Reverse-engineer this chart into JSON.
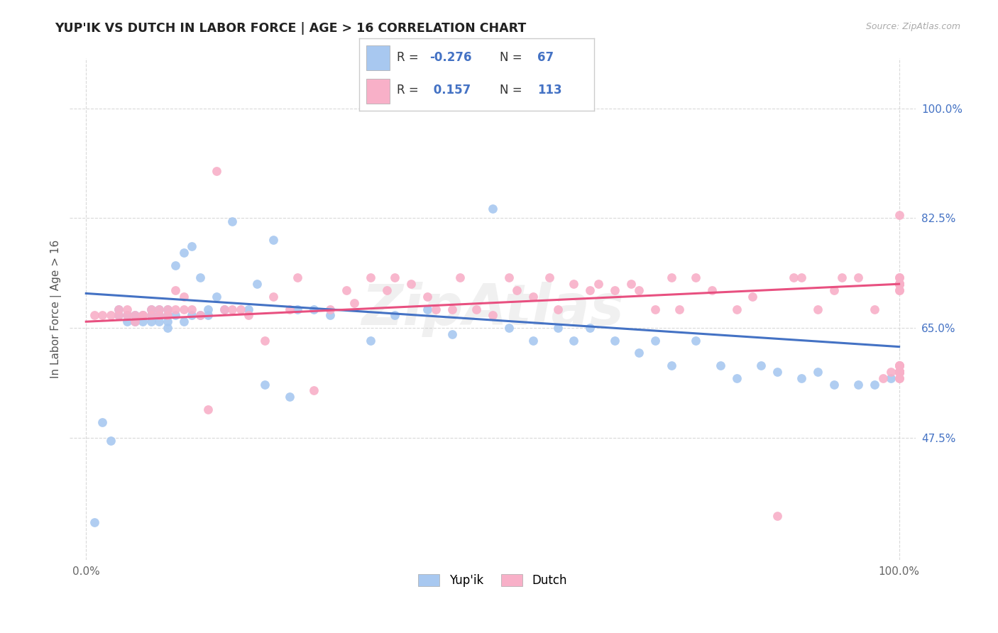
{
  "title": "YUP'IK VS DUTCH IN LABOR FORCE | AGE > 16 CORRELATION CHART",
  "source_text": "Source: ZipAtlas.com",
  "ylabel": "In Labor Force | Age > 16",
  "xlim": [
    -0.02,
    1.02
  ],
  "ylim": [
    0.28,
    1.08
  ],
  "x_tick_labels": [
    "0.0%",
    "100.0%"
  ],
  "x_tick_vals": [
    0.0,
    1.0
  ],
  "y_tick_labels": [
    "47.5%",
    "65.0%",
    "82.5%",
    "100.0%"
  ],
  "y_ticks": [
    0.475,
    0.65,
    0.825,
    1.0
  ],
  "color_yupik": "#a8c8f0",
  "color_dutch": "#f8b0c8",
  "line_color_yupik": "#4472c4",
  "line_color_dutch": "#e85080",
  "watermark": "ZipAtlas",
  "background_color": "#ffffff",
  "grid_color": "#d0d0d0",
  "yupik_x": [
    0.01,
    0.02,
    0.03,
    0.04,
    0.04,
    0.05,
    0.05,
    0.06,
    0.06,
    0.07,
    0.07,
    0.08,
    0.08,
    0.08,
    0.09,
    0.09,
    0.09,
    0.1,
    0.1,
    0.1,
    0.1,
    0.11,
    0.11,
    0.12,
    0.12,
    0.13,
    0.13,
    0.14,
    0.14,
    0.15,
    0.15,
    0.16,
    0.17,
    0.18,
    0.2,
    0.21,
    0.22,
    0.23,
    0.25,
    0.26,
    0.28,
    0.3,
    0.35,
    0.38,
    0.42,
    0.45,
    0.5,
    0.52,
    0.55,
    0.58,
    0.6,
    0.62,
    0.65,
    0.68,
    0.7,
    0.72,
    0.75,
    0.78,
    0.8,
    0.83,
    0.85,
    0.88,
    0.9,
    0.92,
    0.95,
    0.97,
    0.99
  ],
  "yupik_y": [
    0.34,
    0.5,
    0.47,
    0.67,
    0.68,
    0.66,
    0.67,
    0.66,
    0.67,
    0.66,
    0.67,
    0.66,
    0.67,
    0.68,
    0.66,
    0.67,
    0.68,
    0.65,
    0.66,
    0.67,
    0.68,
    0.67,
    0.75,
    0.66,
    0.77,
    0.67,
    0.78,
    0.67,
    0.73,
    0.67,
    0.68,
    0.7,
    0.68,
    0.82,
    0.68,
    0.72,
    0.56,
    0.79,
    0.54,
    0.68,
    0.68,
    0.67,
    0.63,
    0.67,
    0.68,
    0.64,
    0.84,
    0.65,
    0.63,
    0.65,
    0.63,
    0.65,
    0.63,
    0.61,
    0.63,
    0.59,
    0.63,
    0.59,
    0.57,
    0.59,
    0.58,
    0.57,
    0.58,
    0.56,
    0.56,
    0.56,
    0.57
  ],
  "dutch_x": [
    0.01,
    0.02,
    0.03,
    0.04,
    0.04,
    0.05,
    0.05,
    0.06,
    0.06,
    0.07,
    0.07,
    0.08,
    0.08,
    0.09,
    0.09,
    0.1,
    0.1,
    0.11,
    0.11,
    0.12,
    0.12,
    0.13,
    0.14,
    0.15,
    0.16,
    0.17,
    0.18,
    0.19,
    0.2,
    0.22,
    0.23,
    0.25,
    0.26,
    0.28,
    0.3,
    0.32,
    0.33,
    0.35,
    0.37,
    0.38,
    0.4,
    0.42,
    0.43,
    0.45,
    0.46,
    0.48,
    0.5,
    0.52,
    0.53,
    0.55,
    0.57,
    0.58,
    0.6,
    0.62,
    0.63,
    0.65,
    0.67,
    0.68,
    0.7,
    0.72,
    0.73,
    0.75,
    0.77,
    0.8,
    0.82,
    0.85,
    0.87,
    0.88,
    0.9,
    0.92,
    0.93,
    0.95,
    0.97,
    0.98,
    0.99,
    1.0,
    1.0,
    1.0,
    1.0,
    1.0,
    1.0,
    1.0,
    1.0,
    1.0,
    1.0,
    1.0,
    1.0,
    1.0,
    1.0,
    1.0,
    1.0,
    1.0,
    1.0,
    1.0,
    1.0,
    1.0,
    1.0,
    1.0,
    1.0,
    1.0,
    1.0,
    1.0,
    1.0,
    1.0,
    1.0,
    1.0,
    1.0,
    1.0,
    1.0,
    1.0,
    1.0,
    1.0,
    1.0
  ],
  "dutch_y": [
    0.67,
    0.67,
    0.67,
    0.68,
    0.67,
    0.67,
    0.68,
    0.66,
    0.67,
    0.67,
    0.67,
    0.67,
    0.68,
    0.67,
    0.68,
    0.67,
    0.68,
    0.68,
    0.71,
    0.68,
    0.7,
    0.68,
    0.67,
    0.52,
    0.9,
    0.68,
    0.68,
    0.68,
    0.67,
    0.63,
    0.7,
    0.68,
    0.73,
    0.55,
    0.68,
    0.71,
    0.69,
    0.73,
    0.71,
    0.73,
    0.72,
    0.7,
    0.68,
    0.68,
    0.73,
    0.68,
    0.67,
    0.73,
    0.71,
    0.7,
    0.73,
    0.68,
    0.72,
    0.71,
    0.72,
    0.71,
    0.72,
    0.71,
    0.68,
    0.73,
    0.68,
    0.73,
    0.71,
    0.68,
    0.7,
    0.35,
    0.73,
    0.73,
    0.68,
    0.71,
    0.73,
    0.73,
    0.68,
    0.57,
    0.58,
    0.72,
    0.71,
    0.73,
    0.72,
    0.71,
    0.72,
    0.73,
    0.72,
    0.59,
    0.58,
    0.58,
    0.72,
    0.58,
    0.72,
    0.83,
    0.59,
    0.72,
    0.58,
    0.59,
    0.58,
    0.58,
    0.58,
    0.58,
    0.58,
    0.58,
    0.58,
    0.59,
    0.58,
    0.58,
    0.58,
    0.58,
    0.58,
    0.58,
    0.57,
    0.58,
    0.58,
    0.57,
    0.58
  ],
  "yupik_line_x0": 0.0,
  "yupik_line_y0": 0.705,
  "yupik_line_x1": 1.0,
  "yupik_line_y1": 0.62,
  "dutch_line_x0": 0.0,
  "dutch_line_y0": 0.66,
  "dutch_line_x1": 1.0,
  "dutch_line_y1": 0.72
}
